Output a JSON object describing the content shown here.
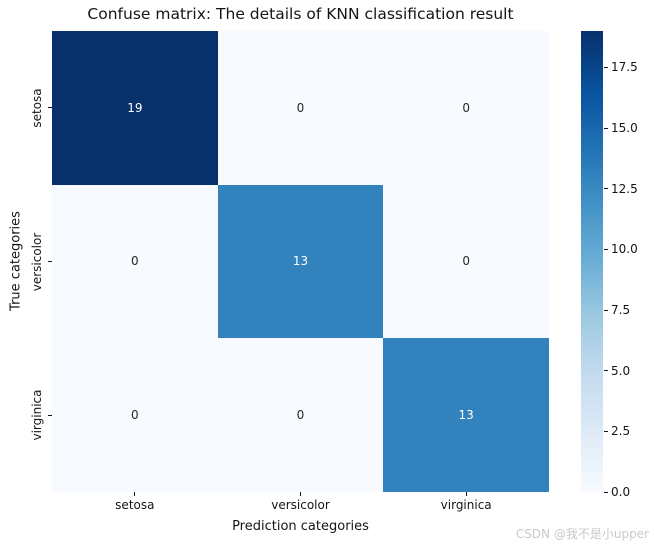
{
  "figure": {
    "watermark": "CSDN @我不是小upper"
  },
  "chart_data": {
    "type": "heatmap",
    "title": "Confuse matrix: The details of KNN classification result",
    "xlabel": "Prediction categories",
    "ylabel": "True categories",
    "x_categories": [
      "setosa",
      "versicolor",
      "virginica"
    ],
    "y_categories": [
      "setosa",
      "versicolor",
      "virginica"
    ],
    "matrix": [
      [
        19,
        0,
        0
      ],
      [
        0,
        13,
        0
      ],
      [
        0,
        0,
        13
      ]
    ],
    "vmin": 0,
    "vmax": 19,
    "grid": false,
    "colormap": "Blues",
    "colormap_stops": [
      "#f7fbff",
      "#deebf7",
      "#c6dbef",
      "#9ecae1",
      "#6baed6",
      "#4292c6",
      "#2171b5",
      "#08519c",
      "#08306b"
    ],
    "colorbar_position": "right",
    "colorbar_ticks": [
      0.0,
      2.5,
      5.0,
      7.5,
      10.0,
      12.5,
      15.0,
      17.5
    ],
    "annotation_colors": {
      "on_dark_cell": "#ffffff",
      "on_light_cell": "#262626"
    },
    "tick_color": "#151515"
  }
}
